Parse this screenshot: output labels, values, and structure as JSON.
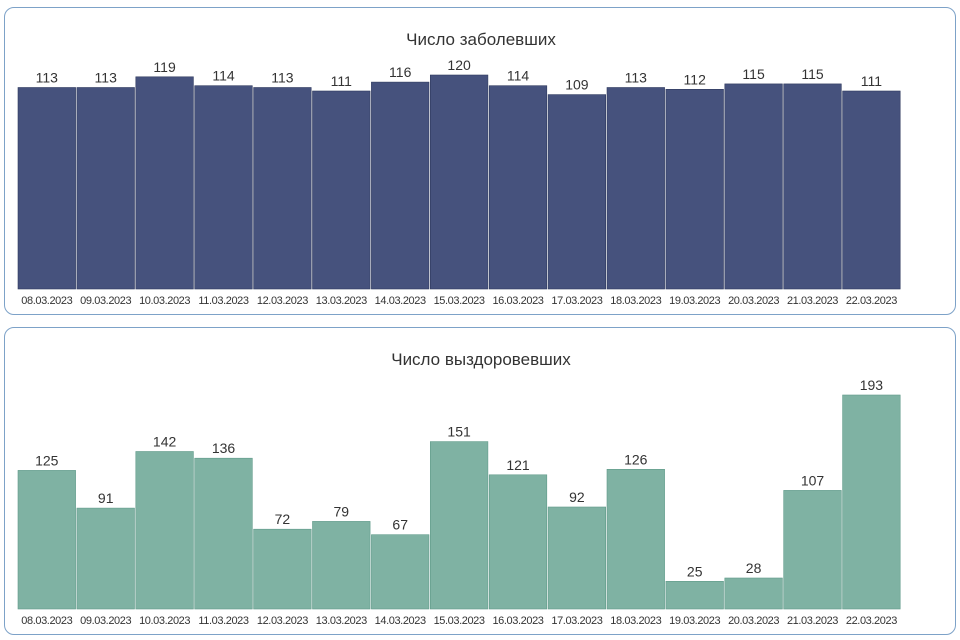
{
  "chart_data": [
    {
      "type": "bar",
      "title": "Число заболевших",
      "categories": [
        "08.03.2023",
        "09.03.2023",
        "10.03.2023",
        "11.03.2023",
        "12.03.2023",
        "13.03.2023",
        "14.03.2023",
        "15.03.2023",
        "16.03.2023",
        "17.03.2023",
        "18.03.2023",
        "19.03.2023",
        "20.03.2023",
        "21.03.2023",
        "22.03.2023"
      ],
      "values": [
        113,
        113,
        119,
        114,
        113,
        111,
        116,
        120,
        114,
        109,
        113,
        112,
        115,
        115,
        111
      ],
      "value_labels": [
        "113",
        "113",
        "119",
        "114",
        "113",
        "111",
        "116",
        "120",
        "114",
        "109",
        "113",
        "112",
        "115",
        "115",
        "111"
      ],
      "color": "#46527d",
      "ylim": [
        0,
        120
      ],
      "xlabel": "",
      "ylabel": "",
      "grid": false
    },
    {
      "type": "bar",
      "title": "Число выздоровевших",
      "categories": [
        "08.03.2023",
        "09.03.2023",
        "10.03.2023",
        "11.03.2023",
        "12.03.2023",
        "13.03.2023",
        "14.03.2023",
        "15.03.2023",
        "16.03.2023",
        "17.03.2023",
        "18.03.2023",
        "19.03.2023",
        "20.03.2023",
        "21.03.2023",
        "22.03.2023"
      ],
      "values": [
        125,
        91,
        142,
        136,
        72,
        79,
        67,
        151,
        121,
        92,
        126,
        25,
        28,
        107,
        193
      ],
      "value_labels": [
        "125",
        "91",
        "142",
        "136",
        "72",
        "79",
        "67",
        "151",
        "121",
        "92",
        "126",
        "25",
        "28",
        "107",
        "193"
      ],
      "color": "#7fb2a3",
      "ylim": [
        0,
        193
      ],
      "xlabel": "",
      "ylabel": "",
      "grid": false
    }
  ]
}
